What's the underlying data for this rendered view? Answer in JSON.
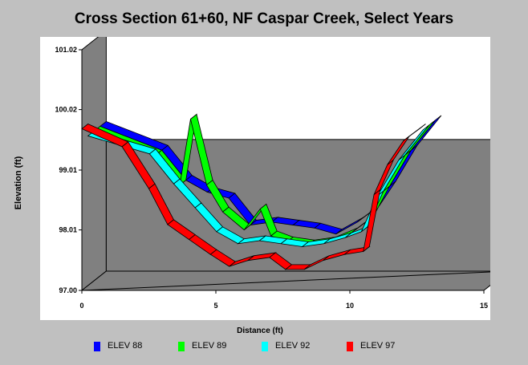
{
  "chart_data": {
    "type": "area",
    "title": "Cross Section 61+60, NF Caspar Creek, Select Years",
    "xlabel": "Distance (ft)",
    "ylabel": "Elevation (ft)",
    "xlim": [
      0,
      15
    ],
    "ylim": [
      97.0,
      101.02
    ],
    "x_ticks": [
      "0",
      "5",
      "10",
      "15"
    ],
    "y_ticks": [
      "97.00",
      "98.01",
      "99.01",
      "100.02",
      "101.02"
    ],
    "grid": false,
    "legend_position": "bottom",
    "colors": {
      "background": "#c0c0c0",
      "plot_background": "#ffffff",
      "wall": "#808080",
      "ELEV 88": "#0000ff",
      "ELEV 89": "#00ff00",
      "ELEV 92": "#00ffff",
      "ELEV 97": "#ff0000"
    },
    "series": [
      {
        "name": "ELEV 88",
        "x": [
          0,
          2.3,
          3.2,
          4.0,
          4.8,
          5.6,
          6.4,
          7.2,
          8.0,
          8.8,
          9.6,
          10.2,
          10.8,
          11.6,
          12.5
        ],
        "y": [
          99.5,
          99.1,
          98.6,
          98.4,
          98.3,
          97.85,
          97.9,
          97.85,
          97.8,
          97.7,
          97.9,
          98.1,
          98.5,
          99.1,
          99.6
        ]
      },
      {
        "name": "ELEV 89",
        "x": [
          0,
          2.3,
          3.2,
          3.6,
          4.2,
          4.8,
          5.6,
          6.2,
          6.6,
          7.2,
          8.0,
          8.8,
          9.6,
          10.2,
          10.8,
          11.6,
          12.5
        ],
        "y": [
          99.5,
          99.1,
          98.6,
          99.7,
          98.6,
          98.15,
          97.85,
          98.2,
          97.75,
          97.65,
          97.6,
          97.65,
          97.8,
          98.0,
          98.5,
          99.1,
          99.6
        ]
      },
      {
        "name": "ELEV 92",
        "x": [
          0,
          2.3,
          3.2,
          4.0,
          4.8,
          5.6,
          6.4,
          7.2,
          8.0,
          8.8,
          9.6,
          10.2,
          10.8,
          11.6,
          12.5
        ],
        "y": [
          99.5,
          99.2,
          98.7,
          98.3,
          97.9,
          97.7,
          97.75,
          97.7,
          97.65,
          97.7,
          97.8,
          97.9,
          98.5,
          99.1,
          99.6
        ]
      },
      {
        "name": "ELEV 97",
        "x": [
          0,
          1.5,
          2.5,
          3.2,
          4.0,
          4.8,
          5.5,
          6.2,
          7.0,
          7.6,
          8.3,
          9.0,
          9.8,
          10.5,
          10.9,
          11.4,
          12.0,
          12.6
        ],
        "y": [
          99.7,
          99.4,
          98.7,
          98.1,
          97.85,
          97.6,
          97.4,
          97.5,
          97.55,
          97.35,
          97.35,
          97.5,
          97.6,
          97.65,
          98.6,
          99.1,
          99.5,
          99.7
        ]
      }
    ]
  }
}
